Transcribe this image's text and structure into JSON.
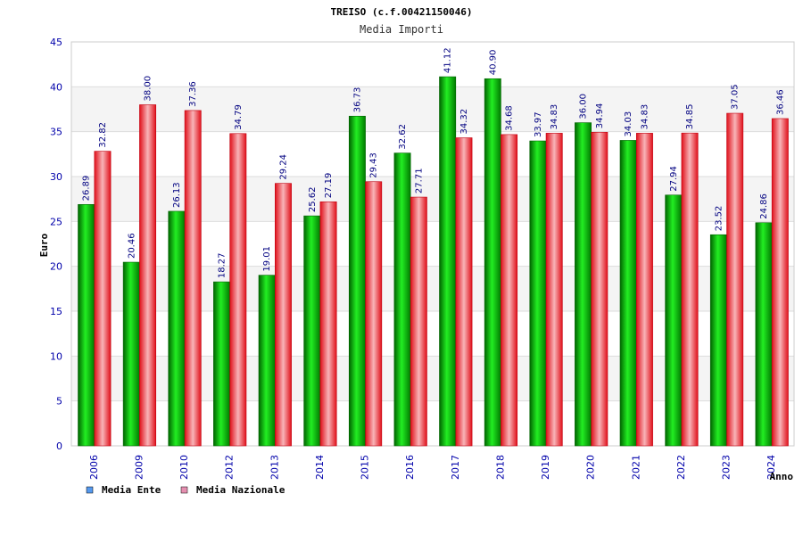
{
  "chart_data": {
    "type": "bar",
    "title": "TREISO (c.f.00421150046)",
    "subtitle": "Media Importi",
    "xlabel": "Anno",
    "ylabel": "Euro",
    "ylim": [
      0,
      45
    ],
    "yticks": [
      "0",
      "5",
      "10",
      "15",
      "20",
      "25",
      "30",
      "35",
      "40",
      "45"
    ],
    "grid": true,
    "legend_position": "bottom-left",
    "categories": [
      "2006",
      "2009",
      "2010",
      "2012",
      "2013",
      "2014",
      "2015",
      "2016",
      "2017",
      "2018",
      "2019",
      "2020",
      "2021",
      "2022",
      "2023",
      "2024"
    ],
    "series": [
      {
        "name": "Media Ente",
        "color": "#00c000",
        "legend_color": "#5599ee",
        "values": [
          26.89,
          20.46,
          26.13,
          18.27,
          19.01,
          25.62,
          36.73,
          32.62,
          41.12,
          40.9,
          33.97,
          36.0,
          34.03,
          27.94,
          23.52,
          24.86
        ],
        "labels": [
          "26.89",
          "20.46",
          "26.13",
          "18.27",
          "19.01",
          "25.62",
          "36.73",
          "32.62",
          "41.12",
          "40.90",
          "33.97",
          "36.00",
          "34.03",
          "27.94",
          "23.52",
          "24.86"
        ]
      },
      {
        "name": "Media Nazionale",
        "color": "#e8303a",
        "legend_color": "#e58fb0",
        "values": [
          32.82,
          38.0,
          37.36,
          34.79,
          29.24,
          27.19,
          29.43,
          27.71,
          34.32,
          34.68,
          34.83,
          34.94,
          34.83,
          34.85,
          37.05,
          36.46
        ],
        "labels": [
          "32.82",
          "38.00",
          "37.36",
          "34.79",
          "29.24",
          "27.19",
          "29.43",
          "27.71",
          "34.32",
          "34.68",
          "34.83",
          "34.94",
          "34.83",
          "34.85",
          "37.05",
          "36.46"
        ]
      }
    ]
  }
}
